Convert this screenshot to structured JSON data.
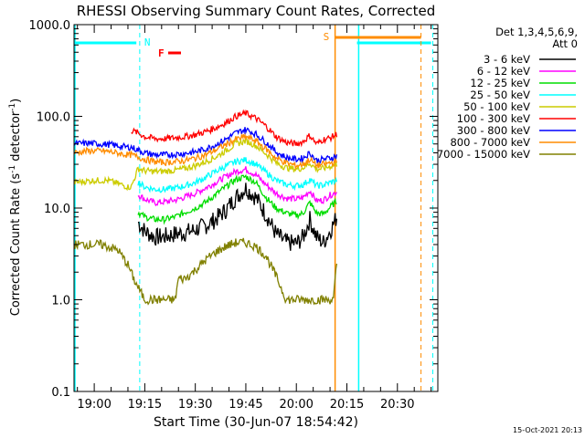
{
  "chart_data": {
    "type": "line",
    "title": "RHESSI Observing Summary Count Rates, Corrected",
    "xlabel": "Start Time (30-Jun-07 18:54:42)",
    "ylabel_main": "Corrected Count Rate (s",
    "ylabel_sup1": "-1",
    "ylabel_mid": " detector",
    "ylabel_sup2": "-1",
    "ylabel_end": ")",
    "yscale": "log",
    "ylim": [
      0.1,
      1000
    ],
    "xlim_min": [
      -6,
      102
    ],
    "y_ticks": [
      {
        "value": 0.1,
        "label": "0.1"
      },
      {
        "value": 1,
        "label": "1.0"
      },
      {
        "value": 10,
        "label": "10.0"
      },
      {
        "value": 100,
        "label": "100.0"
      },
      {
        "value": 1000,
        "label": "1000.0"
      }
    ],
    "x_ticks": [
      {
        "value": 0,
        "label": "19:00"
      },
      {
        "value": 15,
        "label": "19:15"
      },
      {
        "value": 30,
        "label": "19:30"
      },
      {
        "value": 45,
        "label": "19:45"
      },
      {
        "value": 60,
        "label": "20:00"
      },
      {
        "value": 75,
        "label": "20:15"
      },
      {
        "value": 90,
        "label": "20:30"
      }
    ],
    "legend_header": [
      "Det 1,3,4,5,6,9,",
      "Att 0"
    ],
    "legend_position": "top-right",
    "series": [
      {
        "name": "3 - 6 keV",
        "color": "#000000",
        "x": [
          13,
          15,
          18,
          21,
          24,
          27,
          30,
          33,
          36,
          39,
          42,
          45,
          48,
          51,
          54,
          57,
          60,
          62,
          64,
          66,
          68,
          70,
          72
        ],
        "y": [
          7,
          5.6,
          4.8,
          4.9,
          5.2,
          5.4,
          5.8,
          6.4,
          7.5,
          9.5,
          13,
          16.5,
          13,
          8.5,
          5.2,
          4.2,
          4.1,
          4.8,
          7.5,
          4.8,
          4.2,
          5.6,
          8
        ]
      },
      {
        "name": "6 - 12 keV",
        "color": "#ff00ff",
        "x": [
          13,
          15,
          18,
          21,
          24,
          27,
          30,
          33,
          36,
          39,
          42,
          45,
          48,
          51,
          54,
          57,
          60,
          62,
          64,
          66,
          68,
          70,
          72
        ],
        "y": [
          14,
          12.5,
          11.4,
          11.7,
          12.2,
          13.2,
          14.5,
          16.5,
          19,
          22,
          25,
          26.5,
          23,
          18,
          14.5,
          12.8,
          12.5,
          13,
          15.5,
          12,
          12.2,
          13.8,
          15
        ]
      },
      {
        "name": "12 - 25 keV",
        "color": "#00dd00",
        "x": [
          13,
          15,
          18,
          21,
          24,
          27,
          30,
          33,
          36,
          39,
          42,
          45,
          48,
          51,
          54,
          57,
          60,
          62,
          64,
          66,
          68,
          70,
          72
        ],
        "y": [
          9,
          8,
          7.5,
          7.5,
          8,
          9,
          10,
          11.5,
          14,
          17,
          20.5,
          22,
          19,
          13,
          10,
          8.8,
          8.3,
          8.8,
          11.5,
          8.8,
          8.6,
          10.2,
          12
        ]
      },
      {
        "name": "25 - 50 keV",
        "color": "#00ffff",
        "x": [
          13,
          15,
          18,
          21,
          24,
          27,
          30,
          33,
          36,
          39,
          42,
          45,
          48,
          51,
          54,
          57,
          60,
          62,
          64,
          66,
          68,
          70,
          72
        ],
        "y": [
          19,
          17,
          16,
          16,
          16.5,
          17.5,
          19,
          21.5,
          25,
          28.5,
          32,
          33.5,
          30,
          24.5,
          20,
          18,
          17.5,
          18,
          20.5,
          17.5,
          17.8,
          19,
          20
        ]
      },
      {
        "name": "50 - 100 keV",
        "color": "#cccc00",
        "x": [
          -6,
          0,
          4,
          8,
          10,
          11,
          13,
          15,
          18,
          21,
          24,
          27,
          30,
          33,
          36,
          39,
          42,
          45,
          48,
          51,
          54,
          57,
          60,
          62,
          64,
          66,
          68,
          70,
          72
        ],
        "y": [
          19,
          20,
          20,
          18,
          17,
          17,
          27,
          25.5,
          25,
          25.2,
          25.8,
          27,
          29,
          32,
          36,
          42,
          50,
          54,
          48,
          39,
          31,
          27.5,
          26.5,
          27.5,
          31,
          26.5,
          27,
          28.5,
          30
        ]
      },
      {
        "name": "100 - 300 keV",
        "color": "#ff0000",
        "x": [
          11,
          13,
          15,
          18,
          21,
          24,
          27,
          30,
          33,
          36,
          39,
          42,
          45,
          48,
          51,
          54,
          57,
          60,
          62,
          64,
          66,
          68,
          70,
          72
        ],
        "y": [
          70,
          66,
          60,
          57,
          57,
          58.5,
          60,
          63,
          68,
          75,
          85,
          100,
          108,
          95,
          78,
          60,
          52,
          50,
          53,
          62,
          50,
          56,
          58,
          64
        ]
      },
      {
        "name": "300 - 800 keV",
        "color": "#0000ff",
        "x": [
          -6,
          -2,
          2,
          5,
          8,
          10,
          11,
          13,
          15,
          18,
          21,
          24,
          27,
          30,
          33,
          36,
          39,
          42,
          45,
          48,
          51,
          54,
          57,
          60,
          62,
          64,
          66,
          68,
          70,
          72
        ],
        "y": [
          50,
          51,
          50,
          49,
          47,
          46,
          46,
          43,
          40,
          38,
          38,
          38.5,
          39.5,
          41,
          44,
          49,
          56,
          66,
          72,
          64,
          52,
          41,
          35.5,
          34,
          35,
          40,
          33,
          34,
          35,
          37
        ]
      },
      {
        "name": "800 - 7000 keV",
        "color": "#ff8c00",
        "x": [
          -6,
          -2,
          2,
          5,
          8,
          10,
          11,
          13,
          15,
          18,
          21,
          24,
          27,
          30,
          33,
          36,
          39,
          42,
          45,
          48,
          51,
          54,
          57,
          60,
          62,
          64,
          66,
          68,
          70,
          72
        ],
        "y": [
          40,
          42,
          42,
          41,
          39,
          38,
          38,
          36,
          34,
          32,
          31.5,
          32,
          33,
          35,
          38,
          43,
          49,
          56,
          60,
          54,
          44,
          35,
          31,
          29,
          30,
          34,
          29,
          30,
          31,
          32
        ]
      },
      {
        "name": "7000 - 15000 keV",
        "color": "#808000",
        "x": [
          -6,
          2,
          7,
          10,
          12,
          15,
          18,
          21,
          24,
          25,
          27,
          30,
          33,
          36,
          39,
          42,
          45,
          48,
          51,
          54,
          57,
          58,
          60,
          63,
          66,
          69,
          71,
          72
        ],
        "y": [
          4,
          4,
          3.5,
          2.4,
          1.6,
          1,
          1,
          1,
          1,
          1.7,
          1.7,
          2.1,
          2.7,
          3.3,
          3.8,
          4.2,
          4.2,
          3.8,
          3,
          1.8,
          1,
          1,
          1,
          1,
          1,
          1,
          1,
          2.5
        ]
      }
    ],
    "markers": [
      {
        "label": "N",
        "color": "#00ffff"
      },
      {
        "label": "F",
        "color": "#ff0000"
      },
      {
        "label": "S",
        "color": "#ff8c00"
      }
    ]
  },
  "footer": {
    "date": "15-Oct-2021 20:13"
  }
}
